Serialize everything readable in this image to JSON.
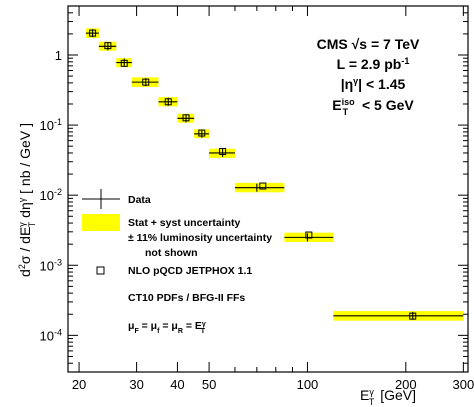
{
  "chart_data": {
    "type": "scatter",
    "xscale": "log",
    "yscale": "log",
    "xlim": [
      18.5,
      310
    ],
    "ylim": [
      3e-05,
      5
    ],
    "x_ticks": [
      20,
      30,
      40,
      50,
      100,
      200,
      300
    ],
    "x_ticks_minor": [
      60,
      70,
      80,
      90
    ],
    "y_ticks": [
      {
        "value": 0.0001,
        "base": "10",
        "exp": "-4"
      },
      {
        "value": 0.001,
        "base": "10",
        "exp": "-3"
      },
      {
        "value": 0.01,
        "base": "10",
        "exp": "-2"
      },
      {
        "value": 0.1,
        "base": "10",
        "exp": "-1"
      },
      {
        "value": 1,
        "base": "1",
        "exp": ""
      }
    ],
    "xlabel": {
      "base": "E",
      "sup": "γ",
      "sub": "T",
      "unit": " [GeV]"
    },
    "ylabel": "d²σ / dE_T^γ dη^γ [ nb / GeV ]",
    "data": {
      "name": "Data",
      "points": [
        {
          "x": 22.0,
          "xlo": 21,
          "xhi": 23,
          "y": 2.05,
          "bandlo": 1.75,
          "bandhi": 2.4
        },
        {
          "x": 24.5,
          "xlo": 23,
          "xhi": 26,
          "y": 1.33,
          "bandlo": 1.15,
          "bandhi": 1.55
        },
        {
          "x": 27.5,
          "xlo": 26,
          "xhi": 29,
          "y": 0.78,
          "bandlo": 0.67,
          "bandhi": 0.9
        },
        {
          "x": 32.0,
          "xlo": 29,
          "xhi": 35,
          "y": 0.41,
          "bandlo": 0.35,
          "bandhi": 0.48
        },
        {
          "x": 37.5,
          "xlo": 35,
          "xhi": 40,
          "y": 0.215,
          "bandlo": 0.185,
          "bandhi": 0.25
        },
        {
          "x": 42.5,
          "xlo": 40,
          "xhi": 45,
          "y": 0.125,
          "bandlo": 0.108,
          "bandhi": 0.145
        },
        {
          "x": 47.5,
          "xlo": 45,
          "xhi": 50,
          "y": 0.075,
          "bandlo": 0.065,
          "bandhi": 0.087
        },
        {
          "x": 55.0,
          "xlo": 50,
          "xhi": 60,
          "y": 0.04,
          "bandlo": 0.034,
          "bandhi": 0.046
        },
        {
          "x": 70.0,
          "xlo": 60,
          "xhi": 85,
          "y": 0.0128,
          "bandlo": 0.011,
          "bandhi": 0.015
        },
        {
          "x": 100.0,
          "xlo": 85,
          "xhi": 120,
          "y": 0.0025,
          "bandlo": 0.00215,
          "bandhi": 0.00292
        },
        {
          "x": 210.0,
          "xlo": 120,
          "xhi": 300,
          "y": 0.00019,
          "bandlo": 0.000162,
          "bandhi": 0.000222
        }
      ]
    },
    "theory": {
      "name": "NLO pQCD JETPHOX 1.1",
      "points": [
        {
          "x": 22.0,
          "y": 2.05
        },
        {
          "x": 24.5,
          "y": 1.36
        },
        {
          "x": 27.5,
          "y": 0.76
        },
        {
          "x": 32.0,
          "y": 0.41
        },
        {
          "x": 37.5,
          "y": 0.215
        },
        {
          "x": 42.5,
          "y": 0.127
        },
        {
          "x": 47.5,
          "y": 0.077
        },
        {
          "x": 55.0,
          "y": 0.042
        },
        {
          "x": 73.0,
          "y": 0.0135
        },
        {
          "x": 101.0,
          "y": 0.0027
        },
        {
          "x": 210.0,
          "y": 0.000188
        }
      ]
    },
    "colors": {
      "band": "#ffff00",
      "axis": "#000000",
      "marker": "#000000"
    },
    "legend": {
      "placement": "bottom-left",
      "data_label": "Data",
      "band_lines": [
        "Stat + syst uncertainty",
        "± 11% luminosity uncertainty",
        "not shown"
      ],
      "theory_label": "NLO pQCD JETPHOX 1.1",
      "pdf_label": "CT10 PDFs / BFG-II FFs",
      "scales_label": "μF = μf = μR = ETγ"
    },
    "annotation": {
      "experiment": "CMS",
      "energy": "√s = 7 TeV",
      "lumi": "L = 2.9 pb⁻¹",
      "eta_cut": "|ηγ| < 1.45",
      "iso_cut": "ETiso < 5 GeV"
    }
  }
}
